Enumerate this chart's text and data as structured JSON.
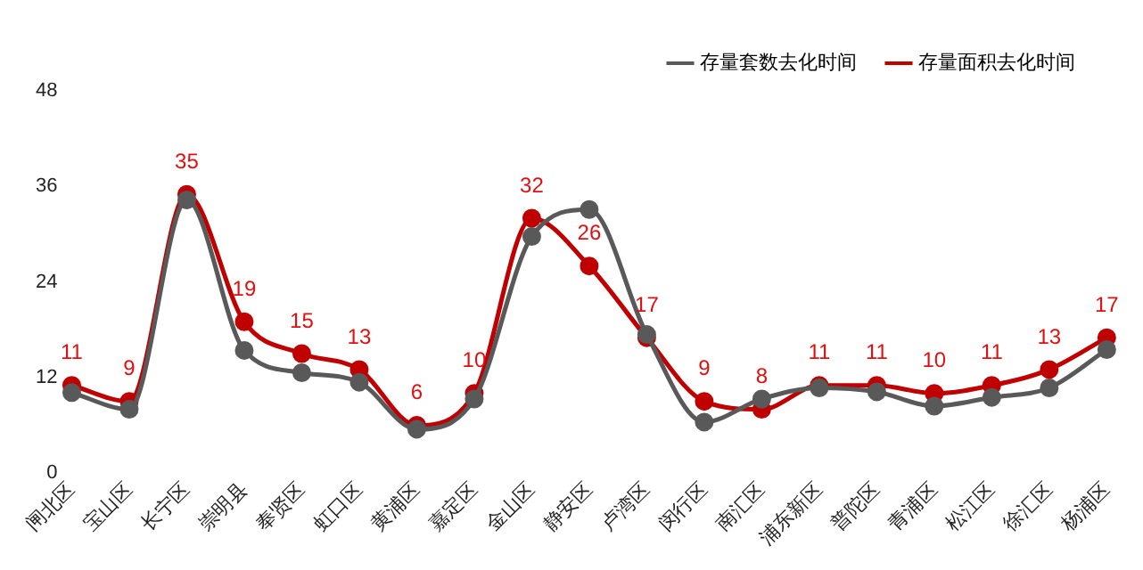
{
  "chart_data": {
    "type": "line",
    "categories": [
      "闸北区",
      "宝山区",
      "长宁区",
      "崇明县",
      "奉贤区",
      "虹口区",
      "黄浦区",
      "嘉定区",
      "金山区",
      "静安区",
      "卢湾区",
      "闵行区",
      "南汇区",
      "浦东新区",
      "普陀区",
      "青浦区",
      "松江区",
      "徐汇区",
      "杨浦区"
    ],
    "series": [
      {
        "name": "存量套数去化时间",
        "color": "#595959",
        "values": [
          10.1,
          8.0,
          34.3,
          15.4,
          12.6,
          11.4,
          5.5,
          9.3,
          29.7,
          33.1,
          17.4,
          6.4,
          9.3,
          10.7,
          10.2,
          8.4,
          9.5,
          10.7,
          15.5
        ]
      },
      {
        "name": "存量面积去化时间",
        "color": "#c00000",
        "data_labels": true,
        "values": [
          11,
          9,
          35,
          19,
          15,
          13,
          6,
          10,
          32,
          26,
          17,
          9,
          8,
          11,
          11,
          10,
          11,
          13,
          17
        ]
      }
    ],
    "ylim": [
      0,
      48
    ],
    "yticks": [
      0,
      12,
      24,
      36,
      48
    ],
    "grid": false,
    "legend": "top right",
    "marker": "circle",
    "line_style": "solid"
  }
}
